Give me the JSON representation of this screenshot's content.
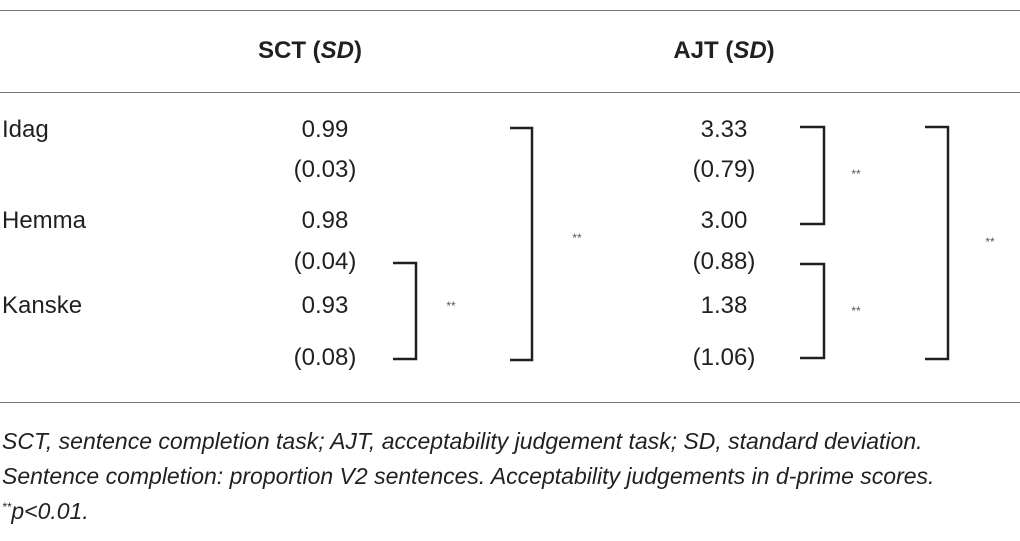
{
  "header": [
    [
      "SCT (",
      "SD",
      ")"
    ],
    [
      "AJT (",
      "SD",
      ")"
    ]
  ],
  "rows": [
    {
      "label": "Idag",
      "sct": "0.99",
      "sct_sd": "(0.03)",
      "ajt": "3.33",
      "ajt_sd": "(0.79)"
    },
    {
      "label": "Hemma",
      "sct": "0.98",
      "sct_sd": "(0.04)",
      "ajt": "3.00",
      "ajt_sd": "(0.88)"
    },
    {
      "label": "Kanske",
      "sct": "0.93",
      "sct_sd": "(0.08)",
      "ajt": "1.38",
      "ajt_sd": "(1.06)"
    }
  ],
  "brackets": [
    "**",
    "**",
    "**",
    "**",
    "**"
  ],
  "note": [
    "SCT, sentence completion task; AJT, acceptability judgement task; SD, standard deviation. Sentence completion: proportion V2 sentences. Acceptability judgements in d-prime scores. ",
    "**",
    "p<0.01."
  ]
}
